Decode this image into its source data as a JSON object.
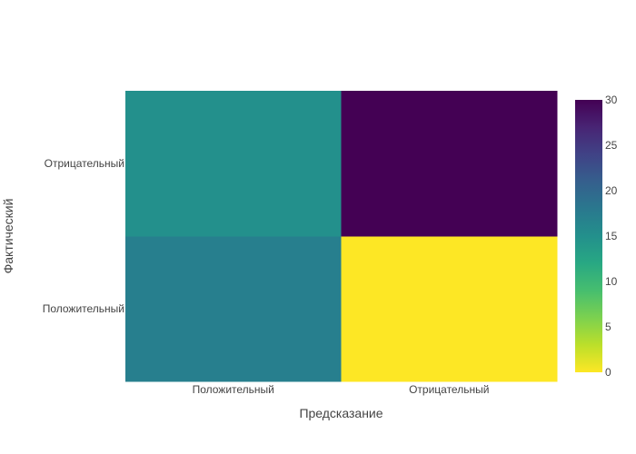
{
  "chart_data": {
    "type": "heatmap",
    "title": "",
    "xlabel": "Предсказание",
    "ylabel": "Фактический",
    "x_categories": [
      "Положительный",
      "Отрицательный"
    ],
    "y_categories": [
      "Положительный",
      "Отрицательный"
    ],
    "z": [
      [
        17,
        0
      ],
      [
        15,
        30
      ]
    ],
    "colorscale": "viridis_reversed",
    "colorbar": {
      "range": [
        0,
        30
      ],
      "ticks": [
        0,
        5,
        10,
        15,
        20,
        25,
        30
      ],
      "tick_labels": [
        "0",
        "5",
        "10",
        "15",
        "20",
        "25",
        "30"
      ]
    },
    "grid": false,
    "legend": "colorbar-right"
  }
}
